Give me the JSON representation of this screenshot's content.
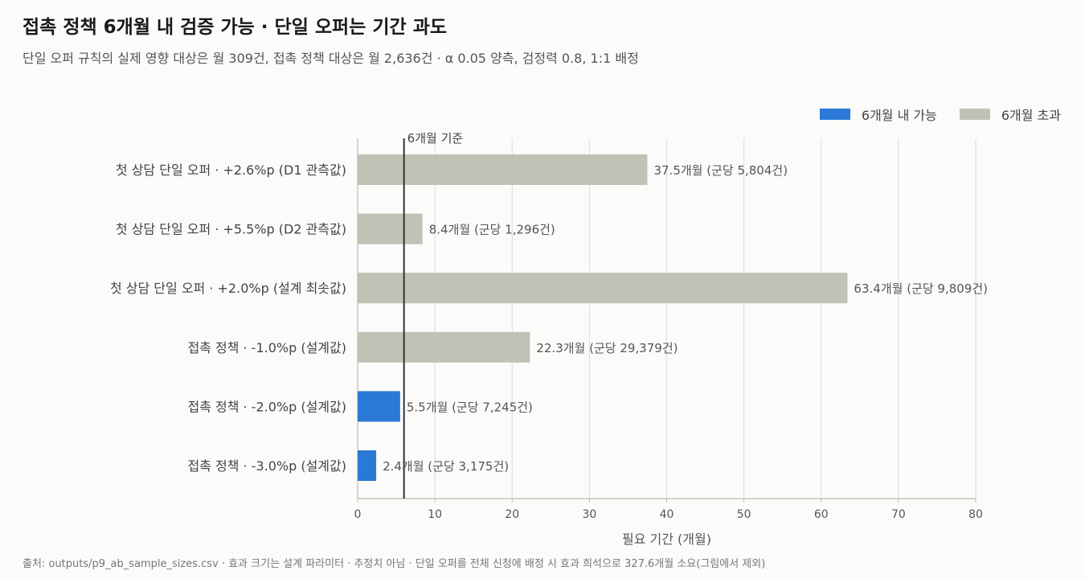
{
  "header": {
    "title": "접촉 정책 6개월 내 검증 가능 · 단일 오퍼는 기간 과도",
    "subtitle": "단일 오퍼 규칙의 실제 영향 대상은 월 309건, 접촉 정책 대상은 월 2,636건 · α 0.05 양측, 검정력 0.8, 1:1 배정"
  },
  "legend": {
    "within_label": "6개월 내 가능",
    "over_label": "6개월 초과"
  },
  "colors": {
    "within": "#2b79d6",
    "over": "#c2c1b5",
    "reference_line": "#333333",
    "grid": "#e0e0dc"
  },
  "footer": {
    "source": "출처: outputs/p9_ab_sample_sizes.csv · 효과 크기는 설계 파라미터 · 추정치 아님 · 단일 오퍼를 전체 신청에 배정 시 효과 희석으로 327.6개월 소요(그림에서 제외)"
  },
  "chart_data": {
    "type": "bar",
    "orientation": "horizontal",
    "xlabel": "필요 기간 (개월)",
    "xlim": [
      0,
      80
    ],
    "xticks": [
      0,
      10,
      20,
      30,
      40,
      50,
      60,
      70,
      80
    ],
    "grid": true,
    "reference_line": {
      "value": 6,
      "label": "6개월 기준"
    },
    "categories": [
      "첫 상담 단일 오퍼 · +2.6%p (D1 관측값)",
      "첫 상담 단일 오퍼 · +5.5%p (D2 관측값)",
      "첫 상담 단일 오퍼 · +2.0%p (설계 최솟값)",
      "접촉 정책 · -1.0%p (설계값)",
      "접촉 정책 · -2.0%p (설계값)",
      "접촉 정책 · -3.0%p (설계값)"
    ],
    "values": [
      37.5,
      8.4,
      63.4,
      22.3,
      5.5,
      2.4
    ],
    "status": [
      "over",
      "over",
      "over",
      "over",
      "within",
      "within"
    ],
    "data_labels": [
      "37.5개월 (군당 5,804건)",
      "8.4개월 (군당 1,296건)",
      "63.4개월 (군당 9,809건)",
      "22.3개월 (군당 29,379건)",
      "5.5개월 (군당 7,245건)",
      "2.4개월 (군당 3,175건)"
    ]
  }
}
